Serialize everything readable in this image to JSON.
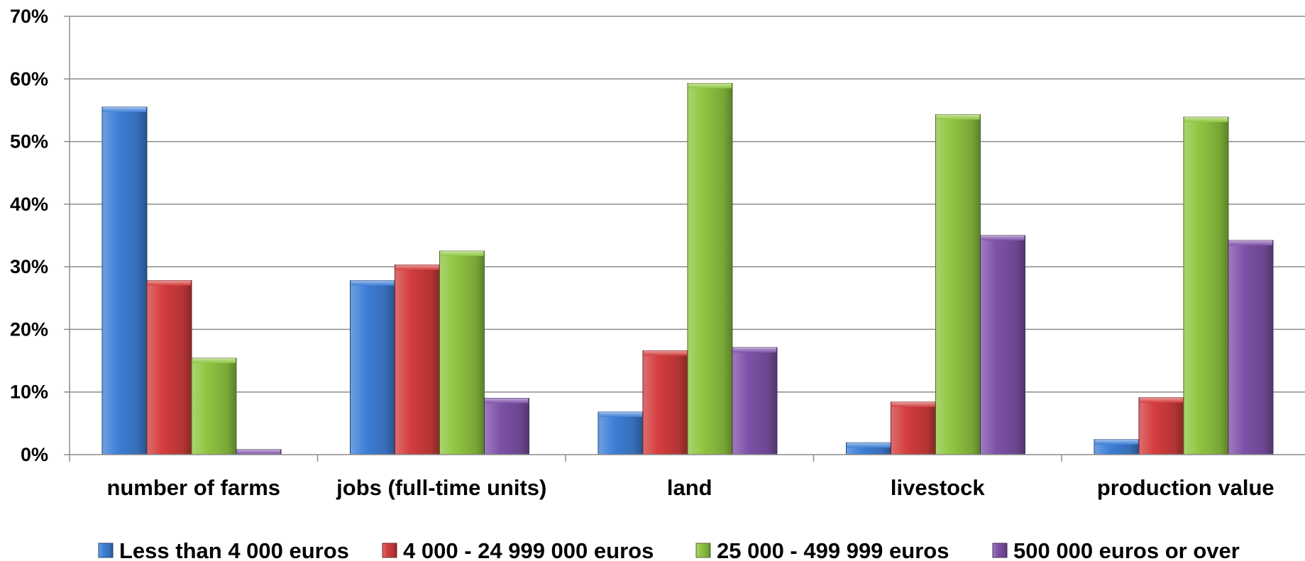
{
  "chart_data": {
    "type": "bar",
    "categories": [
      "number of farms",
      "jobs (full-time units)",
      "land",
      "livestock",
      "production value"
    ],
    "series": [
      {
        "name": "Less than 4 000 euros",
        "values": [
          55.5,
          27.8,
          6.8,
          1.9,
          2.4
        ]
      },
      {
        "name": "4 000 - 24 999 000 euros",
        "values": [
          27.8,
          30.3,
          16.6,
          8.4,
          9.1
        ]
      },
      {
        "name": "25 000 - 499 999 euros",
        "values": [
          15.4,
          32.5,
          59.3,
          54.3,
          53.9
        ]
      },
      {
        "name": "500 000 euros or over",
        "values": [
          0.8,
          9.0,
          17.1,
          35.0,
          34.2
        ]
      }
    ],
    "ylim": [
      0,
      70
    ],
    "yticks": [
      "0%",
      "10%",
      "20%",
      "30%",
      "40%",
      "50%",
      "60%",
      "70%"
    ],
    "ytick_values": [
      0,
      10,
      20,
      30,
      40,
      50,
      60,
      70
    ],
    "grid": true,
    "legend_position": "bottom",
    "colors": [
      "#3e7fd6",
      "#d33d3d",
      "#8fc541",
      "#7e52a8"
    ],
    "title": "",
    "xlabel": "",
    "ylabel": ""
  }
}
